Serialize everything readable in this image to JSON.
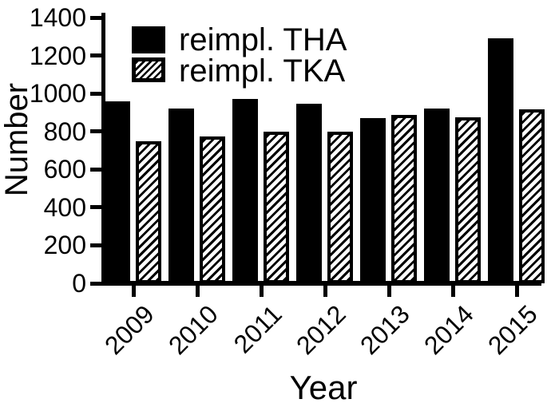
{
  "figure": {
    "background": "#ffffff",
    "ink_color": "#000000"
  },
  "chart_data": {
    "type": "bar",
    "title": "",
    "xlabel": "Year",
    "ylabel": "Number",
    "categories": [
      "2009",
      "2010",
      "2011",
      "2012",
      "2013",
      "2014",
      "2015"
    ],
    "series": [
      {
        "name": "reimpl. THA",
        "fill": "solid-black",
        "color": "#000000",
        "values": [
          960,
          920,
          970,
          945,
          870,
          920,
          1290
        ]
      },
      {
        "name": "reimpl. TKA",
        "fill": "diagonal-hatch",
        "color": "#000000",
        "values": [
          750,
          775,
          800,
          800,
          885,
          875,
          915
        ]
      }
    ],
    "ylim": [
      0,
      1400
    ],
    "yticks": [
      0,
      200,
      400,
      600,
      800,
      1000,
      1200,
      1400
    ],
    "x_tick_label_rotation_deg": -45,
    "grid": false,
    "legend_position": "top-left-inside"
  }
}
